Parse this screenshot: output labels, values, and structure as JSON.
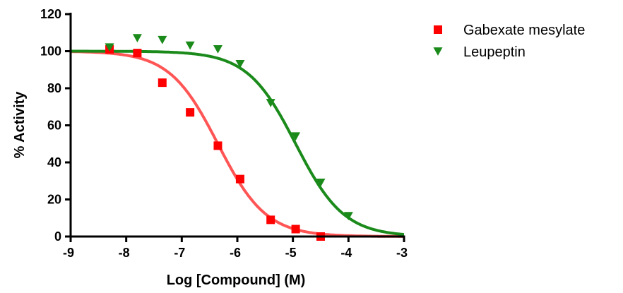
{
  "chart_data": {
    "type": "scatter",
    "title": "",
    "xlabel": "Log [Compound] (M)",
    "ylabel": "% Activity",
    "xlim": [
      -9,
      -3
    ],
    "ylim": [
      0,
      120
    ],
    "x_ticks": [
      -9,
      -8,
      -7,
      -6,
      -5,
      -4,
      -3
    ],
    "y_ticks": [
      0,
      20,
      40,
      60,
      80,
      100,
      120
    ],
    "x_tick_labels": [
      "-9",
      "-8",
      "-7",
      "-6",
      "-5",
      "-4",
      "-3"
    ],
    "y_tick_labels": [
      "0",
      "20",
      "40",
      "60",
      "80",
      "100",
      "120"
    ],
    "grid": false,
    "legend_position": "top-right",
    "series": [
      {
        "name": "Gabexate mesylate",
        "color": "#ff0000",
        "curve_color": "#ff5555",
        "marker": "square",
        "x": [
          -8.3,
          -7.8,
          -7.35,
          -6.85,
          -6.35,
          -5.95,
          -5.4,
          -4.95,
          -4.5
        ],
        "y": [
          101,
          99,
          83,
          67,
          49,
          31,
          9,
          4,
          0
        ],
        "fit": {
          "top": 100,
          "bottom": 0,
          "log_ic50": -6.35,
          "hill": 1.0
        }
      },
      {
        "name": "Leupeptin",
        "color": "#1a8a1a",
        "curve_color": "#1a8a1a",
        "marker": "triangle-down",
        "x": [
          -8.3,
          -7.8,
          -7.35,
          -6.85,
          -6.35,
          -5.95,
          -5.4,
          -4.95,
          -4.5,
          -4.0
        ],
        "y": [
          102,
          107,
          106,
          103,
          101,
          93,
          72,
          54,
          29,
          11
        ],
        "fit": {
          "top": 100,
          "bottom": 0,
          "log_ic50": -4.95,
          "hill": 1.0
        }
      }
    ]
  }
}
